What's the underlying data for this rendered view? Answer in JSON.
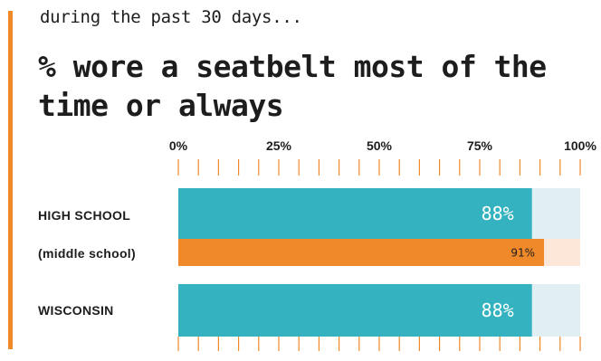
{
  "header": {
    "subtitle": "during the past 30 days...",
    "title": "% wore a seatbelt most of the time or always"
  },
  "colors": {
    "accent": "#f0892a",
    "teal": "#34b2bf",
    "teal_track": "#e1eff2",
    "orange": "#f0892a",
    "orange_track": "#fde7d8",
    "tick": "#f0892a"
  },
  "chart_data": {
    "type": "bar",
    "orientation": "horizontal",
    "xlim": [
      0,
      100
    ],
    "x_ticks": [
      "0%",
      "25%",
      "50%",
      "75%",
      "100%"
    ],
    "x_tick_values": [
      0,
      25,
      50,
      75,
      100
    ],
    "categories": [
      "HIGH SCHOOL",
      "(middle school)",
      "WISCONSIN"
    ],
    "values": [
      88,
      91,
      88
    ],
    "value_labels": [
      "88%",
      "91%",
      "88%"
    ],
    "bar_styles": [
      "teal",
      "orange",
      "teal"
    ],
    "grid": false
  }
}
